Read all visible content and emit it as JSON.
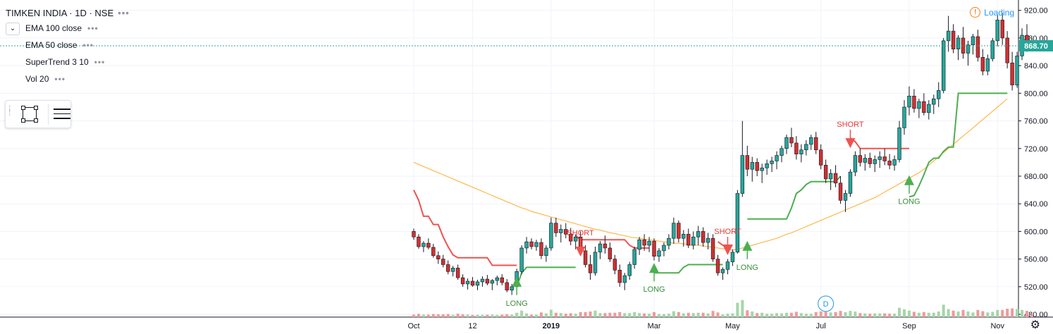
{
  "header": {
    "title": "TIMKEN INDIA · 1D · NSE",
    "indicators": [
      "EMA 100 close",
      "EMA 50 close",
      "SuperTrend 3 10",
      "Vol 20"
    ],
    "status": "Loading",
    "warning_icon": "warning-icon"
  },
  "chart_data": {
    "type": "candlestick",
    "symbol": "TIMKEN INDIA",
    "interval": "1D",
    "exchange": "NSE",
    "y_ticks": [
      480,
      520,
      560,
      600,
      640,
      680,
      720,
      760,
      800,
      840,
      880,
      920
    ],
    "y_tick_labels": [
      "480.00",
      "520.00",
      "560.00",
      "600.00",
      "640.00",
      "680.00",
      "720.00",
      "760.00",
      "800.00",
      "840.00",
      "880.00",
      "920.00"
    ],
    "ylim": [
      476,
      935
    ],
    "x_labels": [
      {
        "label": "Oct",
        "bar": 0
      },
      {
        "label": "12",
        "bar": 12
      },
      {
        "label": "2019",
        "bar": 28,
        "bold": true
      },
      {
        "label": "Mar",
        "bar": 49
      },
      {
        "label": "May",
        "bar": 65
      },
      {
        "label": "Jul",
        "bar": 83
      },
      {
        "label": "Sep",
        "bar": 101
      },
      {
        "label": "Nov",
        "bar": 119
      }
    ],
    "last_price": 868.7,
    "last_price_label": "868.70",
    "candles": [
      [
        600,
        604,
        588,
        592
      ],
      [
        592,
        596,
        575,
        578
      ],
      [
        578,
        586,
        570,
        583
      ],
      [
        583,
        590,
        574,
        577
      ],
      [
        577,
        582,
        562,
        565
      ],
      [
        565,
        571,
        553,
        560
      ],
      [
        560,
        566,
        548,
        552
      ],
      [
        552,
        558,
        538,
        542
      ],
      [
        542,
        550,
        535,
        547
      ],
      [
        547,
        552,
        530,
        533
      ],
      [
        533,
        538,
        520,
        524
      ],
      [
        524,
        532,
        516,
        528
      ],
      [
        528,
        534,
        520,
        522
      ],
      [
        522,
        530,
        515,
        527
      ],
      [
        527,
        535,
        520,
        531
      ],
      [
        531,
        537,
        522,
        525
      ],
      [
        525,
        531,
        515,
        529
      ],
      [
        529,
        536,
        522,
        533
      ],
      [
        533,
        538,
        522,
        526
      ],
      [
        526,
        531,
        512,
        515
      ],
      [
        515,
        524,
        508,
        520
      ],
      [
        520,
        546,
        518,
        542
      ],
      [
        542,
        580,
        538,
        576
      ],
      [
        576,
        592,
        568,
        585
      ],
      [
        585,
        590,
        574,
        578
      ],
      [
        578,
        588,
        572,
        584
      ],
      [
        584,
        590,
        560,
        565
      ],
      [
        565,
        580,
        556,
        576
      ],
      [
        576,
        620,
        572,
        612
      ],
      [
        612,
        620,
        592,
        598
      ],
      [
        598,
        610,
        584,
        603
      ],
      [
        603,
        612,
        590,
        596
      ],
      [
        596,
        605,
        580,
        586
      ],
      [
        586,
        596,
        574,
        592
      ],
      [
        592,
        600,
        568,
        572
      ],
      [
        572,
        580,
        548,
        552
      ],
      [
        552,
        566,
        530,
        540
      ],
      [
        540,
        578,
        536,
        570
      ],
      [
        570,
        586,
        560,
        582
      ],
      [
        582,
        594,
        568,
        576
      ],
      [
        576,
        584,
        556,
        560
      ],
      [
        560,
        566,
        538,
        544
      ],
      [
        544,
        552,
        520,
        526
      ],
      [
        526,
        540,
        515,
        536
      ],
      [
        536,
        556,
        530,
        552
      ],
      [
        552,
        578,
        546,
        574
      ],
      [
        574,
        592,
        566,
        588
      ],
      [
        588,
        596,
        572,
        580
      ],
      [
        580,
        592,
        570,
        586
      ],
      [
        586,
        590,
        558,
        564
      ],
      [
        564,
        576,
        556,
        572
      ],
      [
        572,
        584,
        564,
        580
      ],
      [
        580,
        596,
        574,
        590
      ],
      [
        590,
        620,
        582,
        612
      ],
      [
        612,
        616,
        584,
        590
      ],
      [
        590,
        602,
        578,
        596
      ],
      [
        596,
        604,
        576,
        580
      ],
      [
        580,
        600,
        574,
        592
      ],
      [
        592,
        608,
        580,
        600
      ],
      [
        600,
        606,
        578,
        584
      ],
      [
        584,
        598,
        574,
        590
      ],
      [
        590,
        596,
        556,
        560
      ],
      [
        560,
        566,
        536,
        540
      ],
      [
        540,
        548,
        530,
        545
      ],
      [
        545,
        560,
        538,
        556
      ],
      [
        556,
        574,
        550,
        570
      ],
      [
        570,
        660,
        568,
        655
      ],
      [
        655,
        760,
        650,
        710
      ],
      [
        710,
        724,
        680,
        690
      ],
      [
        690,
        708,
        672,
        700
      ],
      [
        700,
        706,
        680,
        688
      ],
      [
        688,
        698,
        670,
        692
      ],
      [
        692,
        704,
        682,
        698
      ],
      [
        698,
        708,
        686,
        702
      ],
      [
        702,
        716,
        690,
        710
      ],
      [
        710,
        724,
        700,
        720
      ],
      [
        720,
        740,
        712,
        736
      ],
      [
        736,
        750,
        722,
        728
      ],
      [
        728,
        738,
        704,
        712
      ],
      [
        712,
        726,
        700,
        718
      ],
      [
        718,
        732,
        710,
        726
      ],
      [
        726,
        740,
        718,
        736
      ],
      [
        736,
        744,
        712,
        718
      ],
      [
        718,
        726,
        690,
        696
      ],
      [
        696,
        704,
        670,
        676
      ],
      [
        676,
        690,
        660,
        684
      ],
      [
        684,
        696,
        664,
        670
      ],
      [
        670,
        680,
        640,
        645
      ],
      [
        645,
        660,
        628,
        655
      ],
      [
        655,
        690,
        650,
        686
      ],
      [
        686,
        716,
        680,
        710
      ],
      [
        710,
        720,
        694,
        700
      ],
      [
        700,
        712,
        688,
        706
      ],
      [
        706,
        714,
        692,
        698
      ],
      [
        698,
        710,
        686,
        704
      ],
      [
        704,
        716,
        692,
        708
      ],
      [
        708,
        720,
        696,
        702
      ],
      [
        702,
        712,
        690,
        696
      ],
      [
        696,
        710,
        688,
        704
      ],
      [
        704,
        760,
        700,
        750
      ],
      [
        750,
        790,
        740,
        780
      ],
      [
        780,
        810,
        768,
        796
      ],
      [
        796,
        806,
        772,
        778
      ],
      [
        778,
        792,
        764,
        788
      ],
      [
        788,
        800,
        768,
        772
      ],
      [
        772,
        790,
        762,
        784
      ],
      [
        784,
        798,
        770,
        792
      ],
      [
        792,
        816,
        780,
        804
      ],
      [
        804,
        880,
        800,
        876
      ],
      [
        876,
        912,
        860,
        890
      ],
      [
        890,
        900,
        858,
        864
      ],
      [
        864,
        884,
        848,
        880
      ],
      [
        880,
        896,
        850,
        858
      ],
      [
        858,
        876,
        840,
        870
      ],
      [
        870,
        886,
        856,
        882
      ],
      [
        882,
        892,
        846,
        852
      ],
      [
        852,
        864,
        826,
        832
      ],
      [
        832,
        856,
        826,
        850
      ],
      [
        850,
        880,
        846,
        876
      ],
      [
        876,
        914,
        868,
        906
      ],
      [
        906,
        916,
        870,
        880
      ],
      [
        880,
        890,
        836,
        844
      ],
      [
        844,
        860,
        804,
        812
      ],
      [
        812,
        860,
        808,
        854
      ],
      [
        854,
        894,
        848,
        884
      ],
      [
        884,
        900,
        860,
        870
      ],
      [
        870,
        880,
        862,
        868
      ]
    ],
    "ema100": [
      700,
      697,
      694,
      691,
      688,
      685,
      682,
      679,
      676,
      673,
      670,
      667,
      664,
      661,
      658,
      655,
      652,
      649,
      646,
      643,
      640,
      637,
      634,
      632,
      629,
      627,
      625,
      623,
      621,
      619,
      617,
      615,
      613,
      611,
      609,
      607,
      605,
      603,
      602,
      600,
      598,
      597,
      595,
      594,
      592,
      591,
      590,
      589,
      588,
      587,
      586,
      585,
      584,
      583,
      583,
      582,
      581,
      580,
      580,
      579,
      578,
      577,
      576,
      575,
      574,
      573,
      574,
      576,
      578,
      580,
      582,
      584,
      586,
      588,
      590,
      593,
      596,
      598,
      601,
      604,
      607,
      610,
      613,
      616,
      619,
      622,
      625,
      628,
      631,
      634,
      637,
      640,
      643,
      646,
      649,
      653,
      657,
      661,
      665,
      669,
      673,
      677,
      681,
      685,
      690,
      696,
      702,
      708,
      714,
      720,
      726,
      732,
      738,
      744,
      750,
      756,
      762,
      768,
      774,
      780,
      786,
      792
    ],
    "ema50": [
      null,
      null,
      null,
      null,
      null,
      null,
      null,
      null,
      null,
      null,
      null,
      null,
      null,
      null,
      null,
      null,
      null,
      null,
      null,
      null,
      null,
      null,
      null,
      null,
      null,
      null,
      null,
      null,
      null,
      null,
      null,
      null,
      null,
      null,
      null,
      null,
      null,
      null,
      null,
      null,
      null,
      null,
      null,
      null,
      null,
      null,
      null,
      null,
      null,
      null,
      null,
      null,
      null,
      null,
      null,
      null,
      null,
      null,
      null,
      null,
      null,
      null,
      null,
      null,
      null,
      null,
      null,
      null,
      null,
      null,
      null,
      null,
      null,
      null,
      null,
      null,
      null,
      null,
      null,
      null,
      null,
      null,
      null,
      null,
      null,
      null,
      null,
      null,
      null,
      null,
      null,
      null,
      null,
      null,
      null,
      null,
      null,
      null,
      null,
      null,
      null,
      null,
      null,
      null,
      null,
      null,
      null,
      null,
      null,
      null,
      null,
      null,
      null,
      null,
      null,
      null,
      null,
      null,
      null,
      null,
      null,
      null
    ],
    "supertrend_down": [
      [
        0,
        660
      ],
      [
        1,
        645
      ],
      [
        2,
        622
      ],
      [
        3,
        622
      ],
      [
        4,
        610
      ],
      [
        5,
        610
      ],
      [
        6,
        592
      ],
      [
        7,
        578
      ],
      [
        8,
        566
      ],
      [
        9,
        562
      ],
      [
        10,
        562
      ],
      [
        11,
        562
      ],
      [
        12,
        562
      ],
      [
        13,
        562
      ],
      [
        14,
        562
      ],
      [
        15,
        562
      ],
      [
        16,
        551
      ],
      [
        17,
        551
      ],
      [
        18,
        551
      ],
      [
        19,
        551
      ],
      [
        20,
        551
      ],
      [
        21,
        551
      ],
      null,
      [
        33,
        594
      ],
      [
        34,
        588
      ],
      [
        35,
        588
      ],
      [
        36,
        588
      ],
      [
        37,
        588
      ],
      [
        38,
        588
      ],
      [
        39,
        588
      ],
      [
        40,
        588
      ],
      [
        41,
        588
      ],
      [
        42,
        588
      ],
      [
        43,
        588
      ],
      [
        44,
        580
      ],
      [
        45,
        576
      ],
      [
        46,
        576
      ],
      [
        47,
        576
      ],
      [
        48,
        576
      ],
      null,
      [
        62,
        585
      ],
      [
        63,
        580
      ],
      [
        64,
        580
      ],
      [
        65,
        580
      ],
      null,
      [
        89,
        735
      ],
      [
        90,
        730
      ],
      [
        91,
        720
      ],
      [
        92,
        720
      ],
      [
        93,
        720
      ],
      [
        94,
        720
      ],
      [
        95,
        720
      ],
      [
        96,
        720
      ],
      [
        97,
        720
      ],
      [
        98,
        720
      ],
      [
        99,
        720
      ],
      [
        100,
        720
      ],
      [
        101,
        720
      ]
    ],
    "supertrend_up": [
      [
        21,
        520
      ],
      [
        22,
        540
      ],
      [
        23,
        548
      ],
      [
        24,
        548
      ],
      [
        25,
        548
      ],
      [
        26,
        548
      ],
      [
        27,
        548
      ],
      [
        28,
        548
      ],
      [
        29,
        548
      ],
      [
        30,
        548
      ],
      [
        31,
        548
      ],
      [
        32,
        548
      ],
      [
        33,
        548
      ],
      null,
      [
        49,
        540
      ],
      [
        50,
        540
      ],
      [
        51,
        540
      ],
      [
        52,
        540
      ],
      [
        53,
        540
      ],
      [
        54,
        540
      ],
      [
        55,
        548
      ],
      [
        56,
        552
      ],
      [
        57,
        552
      ],
      [
        58,
        552
      ],
      [
        59,
        552
      ],
      [
        60,
        552
      ],
      [
        61,
        552
      ],
      [
        62,
        552
      ],
      [
        63,
        552
      ],
      null,
      [
        68,
        618
      ],
      [
        69,
        618
      ],
      [
        70,
        618
      ],
      [
        71,
        618
      ],
      [
        72,
        618
      ],
      [
        73,
        618
      ],
      [
        74,
        618
      ],
      [
        75,
        618
      ],
      [
        76,
        618
      ],
      [
        77,
        634
      ],
      [
        78,
        655
      ],
      [
        79,
        660
      ],
      [
        80,
        668
      ],
      [
        81,
        672
      ],
      [
        82,
        672
      ],
      [
        83,
        672
      ],
      [
        84,
        672
      ],
      [
        85,
        672
      ],
      [
        86,
        672
      ],
      [
        87,
        680
      ],
      null,
      [
        101,
        650
      ],
      [
        102,
        652
      ],
      [
        103,
        666
      ],
      [
        104,
        682
      ],
      [
        105,
        700
      ],
      [
        106,
        706
      ],
      [
        107,
        706
      ],
      [
        108,
        716
      ],
      [
        109,
        722
      ],
      [
        110,
        722
      ],
      [
        111,
        800
      ],
      [
        112,
        800
      ],
      [
        113,
        800
      ],
      [
        114,
        800
      ],
      [
        115,
        800
      ],
      [
        116,
        800
      ],
      [
        117,
        800
      ],
      [
        118,
        800
      ],
      [
        119,
        800
      ],
      [
        120,
        800
      ],
      [
        121,
        800
      ]
    ],
    "signals": [
      {
        "type": "LONG",
        "bar": 21,
        "price": 518
      },
      {
        "type": "SHORT",
        "bar": 34,
        "price": 578
      },
      {
        "type": "LONG",
        "bar": 49,
        "price": 538
      },
      {
        "type": "SHORT",
        "bar": 64,
        "price": 580
      },
      {
        "type": "LONG",
        "bar": 68,
        "price": 570
      },
      {
        "type": "SHORT",
        "bar": 89,
        "price": 735
      },
      {
        "type": "LONG",
        "bar": 101,
        "price": 665
      }
    ],
    "volume_marker": "D",
    "colors": {
      "up": "#26a69a",
      "down": "#ef5350",
      "candle_body_down": "#d32f2f",
      "ema100": "#f57f17",
      "ema50": "#ffb74d",
      "supertrend_up": "#4caf50",
      "supertrend_down": "#ef5350",
      "volume_up": "#a5d6a7",
      "volume_down": "#ef9a9a",
      "marker": "#2196f3"
    }
  }
}
